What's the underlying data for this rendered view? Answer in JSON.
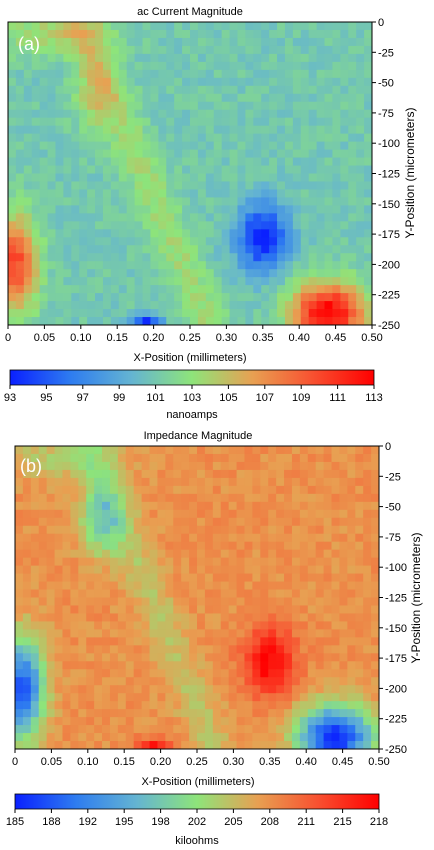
{
  "chart_data": [
    {
      "type": "heatmap",
      "panel_label": "(a)",
      "title": "ac Current Magnitude",
      "xlabel": "X-Position (millimeters)",
      "ylabel": "Y-Position (micrometers)",
      "xlim": [
        0,
        0.5
      ],
      "ylim": [
        -250,
        0
      ],
      "x_ticks": [
        "0",
        "0.05",
        "0.10",
        "0.15",
        "0.20",
        "0.25",
        "0.30",
        "0.35",
        "0.40",
        "0.45",
        "0.50"
      ],
      "y_ticks": [
        "0",
        "-25",
        "-50",
        "-75",
        "-100",
        "-125",
        "-150",
        "-175",
        "-200",
        "-225",
        "-250"
      ],
      "colorbar": {
        "label": "nanoamps",
        "min": 93,
        "max": 113,
        "ticks": [
          "93",
          "95",
          "97",
          "99",
          "101",
          "103",
          "105",
          "107",
          "109",
          "111",
          "113"
        ],
        "colormap": [
          "#0a20ff",
          "#2e7cf0",
          "#64b4d2",
          "#8ee47a",
          "#e8a052",
          "#f85030",
          "#ff0000"
        ]
      },
      "base_value": 101,
      "features": [
        {
          "kind": "blob",
          "x": 0.35,
          "y": -178,
          "rx": 0.035,
          "ry": 28,
          "value": 93,
          "note": "low spot"
        },
        {
          "kind": "blob",
          "x": 0.44,
          "y": -240,
          "rx": 0.05,
          "ry": 25,
          "value": 113,
          "note": "high spot"
        },
        {
          "kind": "blob",
          "x": 0.01,
          "y": -200,
          "rx": 0.03,
          "ry": 40,
          "value": 110
        },
        {
          "kind": "blob",
          "x": 0.06,
          "y": -10,
          "rx": 0.08,
          "ry": 18,
          "value": 104
        },
        {
          "kind": "blob",
          "x": 0.12,
          "y": -60,
          "rx": 0.03,
          "ry": 30,
          "value": 104
        },
        {
          "kind": "blob",
          "x": 0.19,
          "y": -246,
          "rx": 0.02,
          "ry": 5,
          "value": 93
        }
      ]
    },
    {
      "type": "heatmap",
      "panel_label": "(b)",
      "title": "Impedance Magnitude",
      "xlabel": "X-Position (millimeters)",
      "ylabel": "Y-Position (micrometers)",
      "xlim": [
        0,
        0.5
      ],
      "ylim": [
        -250,
        0
      ],
      "x_ticks": [
        "0",
        "0.05",
        "0.10",
        "0.15",
        "0.20",
        "0.25",
        "0.30",
        "0.35",
        "0.40",
        "0.45",
        "0.50"
      ],
      "y_ticks": [
        "0",
        "-25",
        "-50",
        "-75",
        "-100",
        "-125",
        "-150",
        "-175",
        "-200",
        "-225",
        "-250"
      ],
      "colorbar": {
        "label": "kiloohms",
        "min": 185,
        "max": 218,
        "ticks": [
          "185",
          "188",
          "192",
          "195",
          "198",
          "202",
          "205",
          "208",
          "211",
          "215",
          "218"
        ],
        "colormap": [
          "#0a20ff",
          "#2e7cf0",
          "#64b4d2",
          "#8ee47a",
          "#e8a052",
          "#f85030",
          "#ff0000"
        ]
      },
      "base_value": 208,
      "features": [
        {
          "kind": "blob",
          "x": 0.35,
          "y": -178,
          "rx": 0.035,
          "ry": 28,
          "value": 218,
          "note": "high spot"
        },
        {
          "kind": "blob",
          "x": 0.44,
          "y": -240,
          "rx": 0.05,
          "ry": 25,
          "value": 185,
          "note": "low spot"
        },
        {
          "kind": "blob",
          "x": 0.01,
          "y": -200,
          "rx": 0.03,
          "ry": 40,
          "value": 188
        },
        {
          "kind": "blob",
          "x": 0.06,
          "y": -10,
          "rx": 0.08,
          "ry": 18,
          "value": 204
        },
        {
          "kind": "blob",
          "x": 0.12,
          "y": -60,
          "rx": 0.03,
          "ry": 30,
          "value": 199
        },
        {
          "kind": "blob",
          "x": 0.19,
          "y": -246,
          "rx": 0.02,
          "ry": 5,
          "value": 218
        }
      ]
    }
  ]
}
